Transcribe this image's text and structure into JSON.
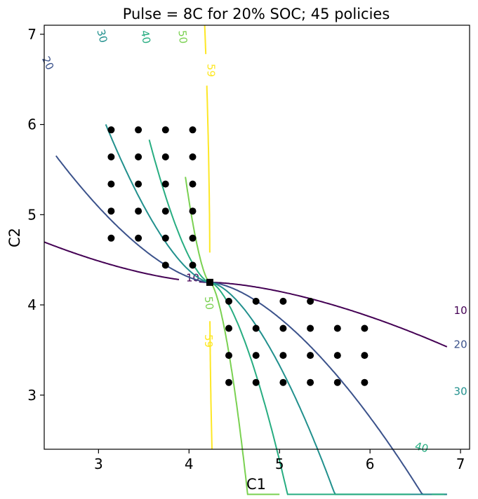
{
  "chart_data": {
    "type": "scatter",
    "title": "Pulse = 8C for 20% SOC; 45 policies",
    "xlabel": "C1",
    "ylabel": "C2",
    "xlim": [
      2.4,
      7.1
    ],
    "ylim": [
      2.4,
      7.1
    ],
    "xticks": [
      "3",
      "4",
      "5",
      "6",
      "7"
    ],
    "yticks": [
      "3",
      "4",
      "5",
      "6",
      "7"
    ],
    "grid": false,
    "colors": {
      "10": "#440154",
      "20": "#3b528b",
      "30": "#21908d",
      "40": "#27ad81",
      "50": "#7ad151",
      "59": "#fde725",
      "points": "#000000"
    },
    "contours": [
      {
        "level": 10,
        "label": "10"
      },
      {
        "level": 20,
        "label": "20"
      },
      {
        "level": 30,
        "label": "30"
      },
      {
        "level": 40,
        "label": "40"
      },
      {
        "level": 50,
        "label": "50"
      },
      {
        "level": 59,
        "label": "59"
      }
    ],
    "center_point": {
      "x": 4.23,
      "y": 4.25,
      "marker": "square"
    },
    "policies": [
      {
        "x": 3.14,
        "y": 5.94
      },
      {
        "x": 3.44,
        "y": 5.94
      },
      {
        "x": 3.74,
        "y": 5.94
      },
      {
        "x": 4.04,
        "y": 5.94
      },
      {
        "x": 3.14,
        "y": 5.64
      },
      {
        "x": 3.44,
        "y": 5.64
      },
      {
        "x": 3.74,
        "y": 5.64
      },
      {
        "x": 4.04,
        "y": 5.64
      },
      {
        "x": 3.14,
        "y": 5.34
      },
      {
        "x": 3.44,
        "y": 5.34
      },
      {
        "x": 3.74,
        "y": 5.34
      },
      {
        "x": 4.04,
        "y": 5.34
      },
      {
        "x": 3.14,
        "y": 5.04
      },
      {
        "x": 3.44,
        "y": 5.04
      },
      {
        "x": 3.74,
        "y": 5.04
      },
      {
        "x": 4.04,
        "y": 5.04
      },
      {
        "x": 3.14,
        "y": 4.74
      },
      {
        "x": 3.44,
        "y": 4.74
      },
      {
        "x": 3.74,
        "y": 4.74
      },
      {
        "x": 4.04,
        "y": 4.74
      },
      {
        "x": 3.74,
        "y": 4.44
      },
      {
        "x": 4.04,
        "y": 4.44
      },
      {
        "x": 4.44,
        "y": 4.04
      },
      {
        "x": 4.74,
        "y": 4.04
      },
      {
        "x": 5.04,
        "y": 4.04
      },
      {
        "x": 5.34,
        "y": 4.04
      },
      {
        "x": 4.44,
        "y": 3.74
      },
      {
        "x": 4.74,
        "y": 3.74
      },
      {
        "x": 5.04,
        "y": 3.74
      },
      {
        "x": 5.34,
        "y": 3.74
      },
      {
        "x": 5.64,
        "y": 3.74
      },
      {
        "x": 5.94,
        "y": 3.74
      },
      {
        "x": 4.44,
        "y": 3.44
      },
      {
        "x": 4.74,
        "y": 3.44
      },
      {
        "x": 5.04,
        "y": 3.44
      },
      {
        "x": 5.34,
        "y": 3.44
      },
      {
        "x": 5.64,
        "y": 3.44
      },
      {
        "x": 5.94,
        "y": 3.44
      },
      {
        "x": 4.44,
        "y": 3.14
      },
      {
        "x": 4.74,
        "y": 3.14
      },
      {
        "x": 5.04,
        "y": 3.14
      },
      {
        "x": 5.34,
        "y": 3.14
      },
      {
        "x": 5.64,
        "y": 3.14
      },
      {
        "x": 5.94,
        "y": 3.14
      }
    ]
  }
}
